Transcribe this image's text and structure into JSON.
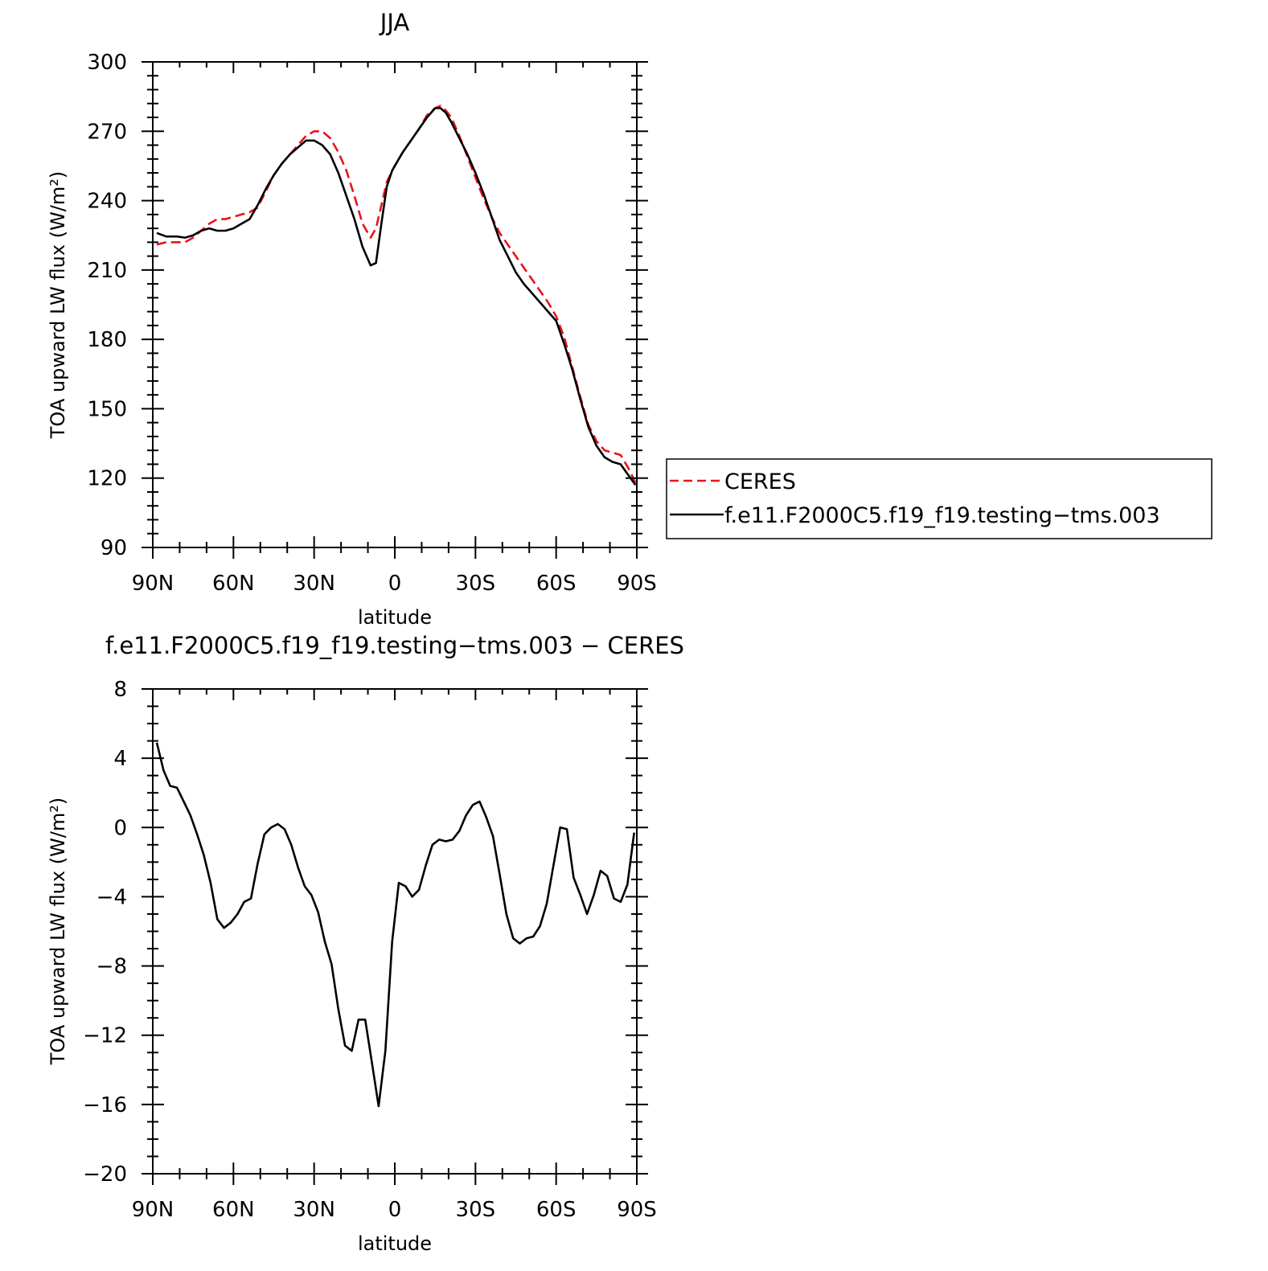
{
  "figure": {
    "background": "#ffffff",
    "colors": {
      "ceres": "#e8141b",
      "model": "#000000",
      "axes": "#000000"
    }
  },
  "chart_data": [
    {
      "id": "top",
      "type": "line",
      "title": "JJA",
      "xlabel": "latitude",
      "ylabel": "TOA upward LW flux (W/m²)",
      "xlim": [
        -90,
        90
      ],
      "ylim": [
        90,
        300
      ],
      "x_direction": "north-to-south",
      "xticks": [
        {
          "value": -90,
          "label": "90N"
        },
        {
          "value": -60,
          "label": "60N"
        },
        {
          "value": -30,
          "label": "30N"
        },
        {
          "value": 0,
          "label": "0"
        },
        {
          "value": 30,
          "label": "30S"
        },
        {
          "value": 60,
          "label": "60S"
        },
        {
          "value": 90,
          "label": "90S"
        }
      ],
      "yticks": [
        90,
        120,
        150,
        180,
        210,
        240,
        270,
        300
      ],
      "grid": false,
      "legend": {
        "placement": "right, outside plot",
        "entries": [
          {
            "label": "CERES",
            "style": "dashed",
            "color": "#e8141b"
          },
          {
            "label": "f.e11.F2000C5.f19_f19.testing−tms.003",
            "style": "solid",
            "color": "#000000"
          }
        ]
      },
      "series": [
        {
          "name": "CERES",
          "style": "dashed",
          "color": "#e8141b",
          "x": [
            -88.5,
            -85,
            -81,
            -78,
            -75,
            -72,
            -69,
            -66,
            -63,
            -60,
            -57,
            -54,
            -51,
            -48,
            -45,
            -42,
            -39,
            -36,
            -33,
            -30,
            -27,
            -24,
            -21,
            -18,
            -15,
            -12,
            -9,
            -7,
            -5,
            -3,
            -1,
            1,
            3,
            6,
            9,
            12,
            15,
            17,
            19,
            21,
            24,
            27,
            30,
            33,
            36,
            39,
            42,
            45,
            48,
            51,
            54,
            57,
            60,
            63,
            66,
            69,
            72,
            75,
            78,
            81,
            84,
            87,
            89.5
          ],
          "y": [
            221,
            222,
            222,
            222,
            224,
            227,
            230,
            232,
            232,
            233,
            234,
            235,
            237,
            244,
            251,
            256,
            260,
            264,
            268,
            270,
            270,
            267,
            261,
            253,
            242,
            230,
            224,
            228,
            238,
            248,
            253,
            257,
            261,
            266,
            271,
            277,
            280,
            281,
            279,
            276,
            268,
            259,
            250,
            241,
            233,
            226,
            221,
            216,
            211,
            206,
            201,
            196,
            190,
            181,
            168,
            155,
            143,
            136,
            132,
            131,
            130,
            124,
            118
          ]
        },
        {
          "name": "f.e11.F2000C5.f19_f19.testing−tms.003",
          "style": "solid",
          "color": "#000000",
          "x": [
            -88.5,
            -85,
            -81,
            -78,
            -75,
            -72,
            -69,
            -66,
            -63,
            -60,
            -57,
            -54,
            -51,
            -48,
            -45,
            -42,
            -39,
            -36,
            -33,
            -30,
            -27,
            -24,
            -21,
            -18,
            -15,
            -12,
            -9,
            -7,
            -5,
            -3,
            -1,
            1,
            3,
            6,
            9,
            12,
            15,
            17,
            19,
            21,
            24,
            27,
            30,
            33,
            36,
            39,
            42,
            45,
            48,
            51,
            54,
            57,
            60,
            63,
            66,
            69,
            72,
            75,
            78,
            81,
            84,
            87,
            89.5
          ],
          "y": [
            226,
            224.5,
            224.5,
            224,
            225,
            227,
            228,
            227,
            227,
            228,
            230,
            232,
            238,
            245,
            251,
            256,
            260,
            263,
            266,
            266,
            264,
            260,
            252,
            242,
            232,
            220,
            212,
            213,
            230,
            246,
            253,
            257,
            261,
            266,
            271,
            276,
            280,
            280,
            278,
            274,
            267,
            260,
            252,
            243,
            233,
            223,
            216,
            209,
            204,
            200,
            196,
            192,
            188,
            178,
            167,
            154,
            142,
            134,
            129,
            127,
            126,
            121,
            117
          ]
        }
      ]
    },
    {
      "id": "bottom",
      "type": "line",
      "title": "f.e11.F2000C5.f19_f19.testing−tms.003 − CERES",
      "xlabel": "latitude",
      "ylabel": "TOA upward LW flux (W/m²)",
      "xlim": [
        -90,
        90
      ],
      "ylim": [
        -20,
        8
      ],
      "x_direction": "north-to-south",
      "xticks": [
        {
          "value": -90,
          "label": "90N"
        },
        {
          "value": -60,
          "label": "60N"
        },
        {
          "value": -30,
          "label": "30N"
        },
        {
          "value": 0,
          "label": "0"
        },
        {
          "value": 30,
          "label": "30S"
        },
        {
          "value": 60,
          "label": "60S"
        },
        {
          "value": 90,
          "label": "90S"
        }
      ],
      "yticks": [
        -20,
        -16,
        -12,
        -8,
        -4,
        0,
        4,
        8
      ],
      "ytick_labels": [
        "−20",
        "−16",
        "−12",
        "−8",
        "−4",
        "0",
        "4",
        "8"
      ],
      "grid": false,
      "series": [
        {
          "name": "",
          "style": "solid",
          "color": "#000000",
          "x": [
            -88.5,
            -86,
            -83.5,
            -81,
            -78.5,
            -76,
            -73.5,
            -71,
            -68.5,
            -66,
            -63.5,
            -61,
            -58.5,
            -56,
            -53.5,
            -51,
            -48.5,
            -46,
            -43.5,
            -41,
            -38.5,
            -36,
            -33.5,
            -31,
            -28.5,
            -26,
            -23.5,
            -21,
            -18.5,
            -16,
            -13.5,
            -11,
            -8.5,
            -6,
            -3.5,
            -1,
            1.5,
            4,
            6.5,
            9,
            11.5,
            14,
            16.5,
            19,
            21.5,
            24,
            26.5,
            29,
            31.5,
            34,
            36.5,
            39,
            41.5,
            44,
            46.5,
            49,
            51.5,
            54,
            56.5,
            59,
            61.5,
            64,
            66.5,
            69,
            71.5,
            74,
            76.5,
            79,
            81.5,
            84,
            86.5,
            89
          ],
          "y": [
            4.9,
            3.3,
            2.4,
            2.3,
            1.5,
            0.7,
            -0.4,
            -1.6,
            -3.2,
            -5.3,
            -5.8,
            -5.5,
            -5.0,
            -4.3,
            -4.1,
            -2.1,
            -0.4,
            0.0,
            0.2,
            -0.1,
            -1.0,
            -2.3,
            -3.4,
            -3.9,
            -4.9,
            -6.6,
            -7.9,
            -10.5,
            -12.6,
            -12.9,
            -11.1,
            -11.1,
            -13.6,
            -16.1,
            -12.9,
            -6.6,
            -3.2,
            -3.4,
            -4.0,
            -3.6,
            -2.2,
            -1.0,
            -0.7,
            -0.8,
            -0.7,
            -0.2,
            0.7,
            1.3,
            1.5,
            0.6,
            -0.5,
            -2.7,
            -5.0,
            -6.4,
            -6.7,
            -6.4,
            -6.3,
            -5.7,
            -4.4,
            -2.2,
            0.0,
            -0.1,
            -2.9,
            -3.9,
            -5.0,
            -3.9,
            -2.5,
            -2.8,
            -4.1,
            -4.3,
            -3.3,
            -0.3
          ]
        }
      ]
    }
  ]
}
